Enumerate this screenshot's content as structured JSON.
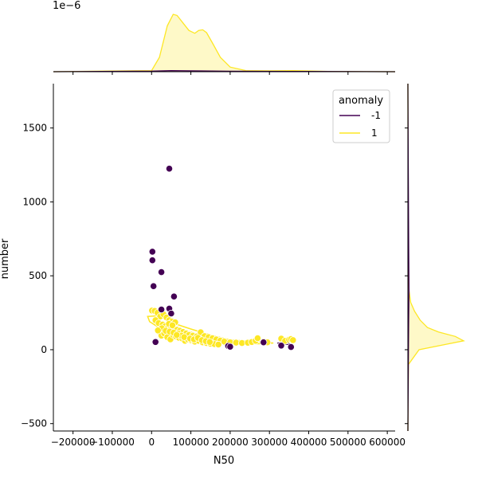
{
  "chart_data": {
    "type": "scatter",
    "title": "",
    "xlabel": "N50",
    "ylabel": "number",
    "xlim": [
      -250000,
      620000
    ],
    "ylim": [
      -550,
      1800
    ],
    "x_ticks": [
      -200000,
      -100000,
      0,
      100000,
      200000,
      300000,
      400000,
      500000,
      600000
    ],
    "x_tick_labels": [
      "−200000",
      "−100000",
      "0",
      "100000",
      "200000",
      "300000",
      "400000",
      "500000",
      "600000"
    ],
    "y_ticks": [
      -500,
      0,
      500,
      1000,
      1500
    ],
    "y_tick_labels": [
      "−500",
      "0",
      "500",
      "1000",
      "1500"
    ],
    "top_axis_offset_label": "1e−6",
    "legend": {
      "title": "anomaly",
      "placement": "top-right",
      "entries": [
        {
          "label": "-1",
          "color": "#440154"
        },
        {
          "label": "1",
          "color": "#fde725"
        }
      ]
    },
    "series": [
      {
        "name": "1",
        "color": "#fde725",
        "points": [
          [
            1000,
            265
          ],
          [
            8000,
            262
          ],
          [
            15000,
            250
          ],
          [
            22000,
            225
          ],
          [
            30000,
            240
          ],
          [
            38000,
            218
          ],
          [
            45000,
            200
          ],
          [
            52000,
            190
          ],
          [
            60000,
            185
          ],
          [
            10000,
            200
          ],
          [
            18000,
            180
          ],
          [
            28000,
            170
          ],
          [
            35000,
            160
          ],
          [
            42000,
            150
          ],
          [
            50000,
            145
          ],
          [
            58000,
            140
          ],
          [
            65000,
            135
          ],
          [
            72000,
            128
          ],
          [
            80000,
            120
          ],
          [
            88000,
            110
          ],
          [
            95000,
            100
          ],
          [
            105000,
            95
          ],
          [
            115000,
            90
          ],
          [
            125000,
            118
          ],
          [
            135000,
            92
          ],
          [
            145000,
            85
          ],
          [
            155000,
            78
          ],
          [
            165000,
            70
          ],
          [
            175000,
            62
          ],
          [
            185000,
            55
          ],
          [
            200000,
            50
          ],
          [
            215000,
            48
          ],
          [
            230000,
            45
          ],
          [
            245000,
            47
          ],
          [
            255000,
            52
          ],
          [
            265000,
            60
          ],
          [
            270000,
            78
          ],
          [
            285000,
            55
          ],
          [
            295000,
            50
          ],
          [
            330000,
            75
          ],
          [
            340000,
            60
          ],
          [
            350000,
            68
          ],
          [
            355000,
            72
          ],
          [
            360000,
            65
          ],
          [
            20000,
            120
          ],
          [
            25000,
            95
          ],
          [
            32000,
            110
          ],
          [
            40000,
            85
          ],
          [
            48000,
            70
          ],
          [
            55000,
            100
          ],
          [
            62000,
            90
          ],
          [
            70000,
            80
          ],
          [
            78000,
            75
          ],
          [
            85000,
            60
          ],
          [
            92000,
            70
          ],
          [
            100000,
            65
          ],
          [
            110000,
            55
          ],
          [
            120000,
            60
          ],
          [
            130000,
            50
          ],
          [
            140000,
            45
          ],
          [
            150000,
            40
          ],
          [
            160000,
            38
          ],
          [
            170000,
            35
          ],
          [
            26000,
            145
          ],
          [
            44000,
            175
          ],
          [
            53000,
            165
          ],
          [
            67000,
            110
          ],
          [
            76000,
            95
          ],
          [
            83000,
            85
          ],
          [
            98000,
            75
          ],
          [
            108000,
            70
          ],
          [
            118000,
            80
          ],
          [
            128000,
            65
          ],
          [
            138000,
            58
          ],
          [
            148000,
            52
          ],
          [
            16000,
            130
          ],
          [
            36000,
            128
          ],
          [
            46000,
            122
          ],
          [
            56000,
            115
          ],
          [
            64000,
            100
          ]
        ]
      },
      {
        "name": "-1",
        "color": "#440154",
        "points": [
          [
            45000,
            1225
          ],
          [
            2000,
            663
          ],
          [
            2000,
            605
          ],
          [
            25000,
            525
          ],
          [
            5000,
            430
          ],
          [
            57000,
            360
          ],
          [
            45000,
            278
          ],
          [
            25000,
            272
          ],
          [
            50000,
            245
          ],
          [
            10000,
            52
          ],
          [
            195000,
            25
          ],
          [
            200000,
            20
          ],
          [
            285000,
            50
          ],
          [
            330000,
            28
          ],
          [
            355000,
            18
          ]
        ]
      }
    ],
    "kde_contours_series": [
      "1",
      "-1"
    ],
    "marginal_top": {
      "axis": "x",
      "series": [
        {
          "name": "1",
          "x": [
            -250000,
            0,
            20000,
            40000,
            55000,
            65000,
            80000,
            95000,
            110000,
            120000,
            130000,
            140000,
            155000,
            175000,
            200000,
            240000,
            300000,
            360000,
            450000,
            620000
          ],
          "density": [
            0,
            0.02,
            0.25,
            0.8,
            1.0,
            0.98,
            0.85,
            0.72,
            0.67,
            0.72,
            0.73,
            0.68,
            0.5,
            0.25,
            0.08,
            0.02,
            0.015,
            0.02,
            0.005,
            0
          ]
        },
        {
          "name": "-1",
          "x": [
            -250000,
            0,
            50000,
            100000,
            200000,
            350000,
            620000
          ],
          "density": [
            0,
            0.01,
            0.02,
            0.015,
            0.008,
            0.006,
            0
          ]
        }
      ]
    },
    "marginal_right": {
      "axis": "y",
      "series": [
        {
          "name": "1",
          "y": [
            -550,
            -100,
            0,
            30,
            60,
            90,
            120,
            150,
            200,
            260,
            320,
            400,
            600,
            1800
          ],
          "density": [
            0,
            0.01,
            0.2,
            0.6,
            1.0,
            0.85,
            0.55,
            0.35,
            0.22,
            0.12,
            0.05,
            0.02,
            0.005,
            0
          ]
        },
        {
          "name": "-1",
          "y": [
            -550,
            0,
            200,
            400,
            700,
            1000,
            1300,
            1800
          ],
          "density": [
            0,
            0.01,
            0.015,
            0.02,
            0.015,
            0.01,
            0.006,
            0
          ]
        }
      ]
    }
  }
}
